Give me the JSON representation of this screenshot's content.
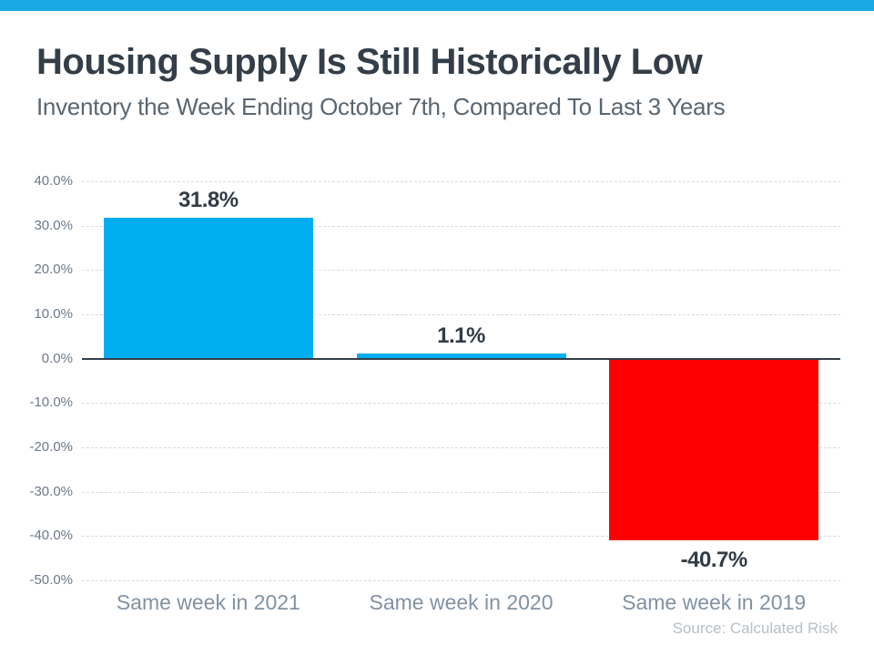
{
  "header": {
    "title": "Housing Supply Is Still Historically Low",
    "subtitle": "Inventory the Week Ending October 7th, Compared To Last 3 Years"
  },
  "footer": {
    "source": "Source: Calculated Risk"
  },
  "colors": {
    "header_stripe": "#18A9E4",
    "bar_positive": "#00AEEF",
    "bar_negative": "#FF0000",
    "title_text": "#333E48",
    "subtitle_text": "#5A6670",
    "axis_label": "#6C7988",
    "category_label": "#8292A2",
    "value_label": "#303B45",
    "gridline": "#D8DBDE",
    "zero_line": "#333E48",
    "source_text": "#B9BFC5"
  },
  "chart_data": {
    "type": "bar",
    "title": "Housing Supply Is Still Historically Low",
    "subtitle": "Inventory the Week Ending October 7th, Compared To Last 3 Years",
    "categories": [
      "Same week in 2021",
      "Same week in 2020",
      "Same week in 2019"
    ],
    "values": [
      31.8,
      1.1,
      -40.7
    ],
    "value_labels": [
      "31.8%",
      "1.1%",
      "-40.7%"
    ],
    "bar_colors": [
      "#00AEEF",
      "#00AEEF",
      "#FF0000"
    ],
    "xlabel": "",
    "ylabel": "",
    "ylim": [
      -50,
      40
    ],
    "yticks": [
      {
        "value": 40,
        "label": "40.0%"
      },
      {
        "value": 30,
        "label": "30.0%"
      },
      {
        "value": 20,
        "label": "20.0%"
      },
      {
        "value": 10,
        "label": "10.0%"
      },
      {
        "value": 0,
        "label": "0.0%"
      },
      {
        "value": -10,
        "label": "-10.0%"
      },
      {
        "value": -20,
        "label": "-20.0%"
      },
      {
        "value": -30,
        "label": "-30.0%"
      },
      {
        "value": -40,
        "label": "-40.0%"
      },
      {
        "value": -50,
        "label": "-50.0%"
      }
    ],
    "grid": true,
    "legend": "none",
    "source": "Source: Calculated Risk"
  }
}
